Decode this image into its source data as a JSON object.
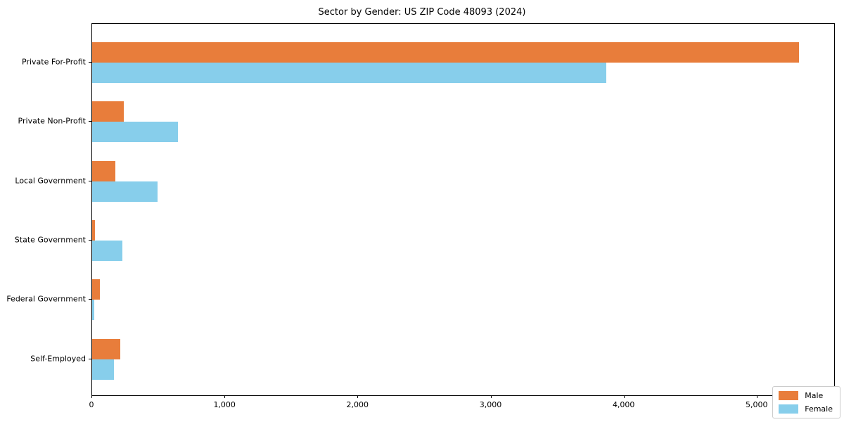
{
  "title": "Sector by Gender: US ZIP Code 48093 (2024)",
  "colors": {
    "male": "#e87d3b",
    "female": "#87ceeb",
    "axis": "#000000",
    "background": "#ffffff",
    "legend_border": "#cccccc"
  },
  "chart_data": {
    "type": "bar",
    "orientation": "horizontal",
    "title": "Sector by Gender: US ZIP Code 48093 (2024)",
    "xlabel": "",
    "ylabel": "",
    "categories": [
      "Private For-Profit",
      "Private Non-Profit",
      "Local Government",
      "State Government",
      "Federal Government",
      "Self-Employed"
    ],
    "series": [
      {
        "name": "Male",
        "color": "#e87d3b",
        "values": [
          5310,
          238,
          173,
          21,
          57,
          211
        ]
      },
      {
        "name": "Female",
        "color": "#87ceeb",
        "values": [
          3864,
          643,
          493,
          226,
          15,
          164
        ]
      }
    ],
    "xlim": [
      0,
      5577
    ],
    "x_ticks": [
      {
        "value": 0,
        "label": "0"
      },
      {
        "value": 1000,
        "label": "1,000"
      },
      {
        "value": 2000,
        "label": "2,000"
      },
      {
        "value": 3000,
        "label": "3,000"
      },
      {
        "value": 4000,
        "label": "4,000"
      },
      {
        "value": 5000,
        "label": "5,000"
      }
    ],
    "grid": false,
    "legend_position": "lower right"
  },
  "legend": {
    "items": [
      {
        "label": "Male"
      },
      {
        "label": "Female"
      }
    ]
  }
}
